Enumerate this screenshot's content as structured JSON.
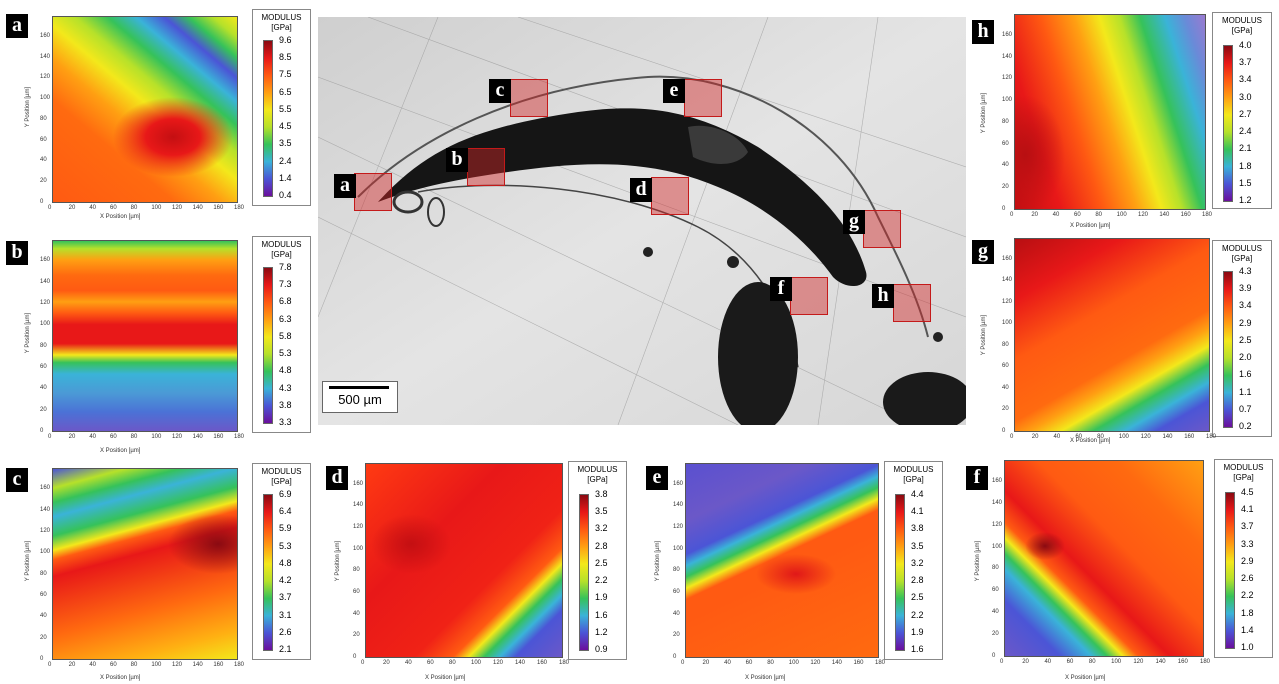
{
  "legend_title": [
    "MODULUS",
    "[GPa]"
  ],
  "x_axis_title": "X Position [µm]",
  "y_axis_title": "Y Position [µm]",
  "x_ticks": [
    "0",
    "20",
    "40",
    "60",
    "80",
    "100",
    "120",
    "140",
    "160",
    "180"
  ],
  "y_ticks": [
    "0",
    "20",
    "40",
    "60",
    "80",
    "100",
    "120",
    "140",
    "160"
  ],
  "scale_bar": "500 µm",
  "roi_labels": [
    "a",
    "b",
    "c",
    "d",
    "e",
    "f",
    "g",
    "h"
  ],
  "colormap": [
    "#6b0f9c",
    "#4b55d6",
    "#3ab3d8",
    "#36c25a",
    "#b6e12a",
    "#f3e81b",
    "#ff9f12",
    "#ff5a12",
    "#e81818",
    "#8a0a12"
  ],
  "panels": {
    "a": {
      "letter": "a",
      "ticks": [
        "9.6",
        "8.5",
        "7.5",
        "6.5",
        "5.5",
        "4.5",
        "3.5",
        "2.4",
        "1.4",
        "0.4"
      ]
    },
    "b": {
      "letter": "b",
      "ticks": [
        "7.8",
        "7.3",
        "6.8",
        "6.3",
        "5.8",
        "5.3",
        "4.8",
        "4.3",
        "3.8",
        "3.3"
      ]
    },
    "c": {
      "letter": "c",
      "ticks": [
        "6.9",
        "6.4",
        "5.9",
        "5.3",
        "4.8",
        "4.2",
        "3.7",
        "3.1",
        "2.6",
        "2.1"
      ]
    },
    "d": {
      "letter": "d",
      "ticks": [
        "3.8",
        "3.5",
        "3.2",
        "2.8",
        "2.5",
        "2.2",
        "1.9",
        "1.6",
        "1.2",
        "0.9"
      ]
    },
    "e": {
      "letter": "e",
      "ticks": [
        "4.4",
        "4.1",
        "3.8",
        "3.5",
        "3.2",
        "2.8",
        "2.5",
        "2.2",
        "1.9",
        "1.6"
      ]
    },
    "f": {
      "letter": "f",
      "ticks": [
        "4.5",
        "4.1",
        "3.7",
        "3.3",
        "2.9",
        "2.6",
        "2.2",
        "1.8",
        "1.4",
        "1.0"
      ]
    },
    "g": {
      "letter": "g",
      "ticks": [
        "4.3",
        "3.9",
        "3.4",
        "2.9",
        "2.5",
        "2.0",
        "1.6",
        "1.1",
        "0.7",
        "0.2"
      ]
    },
    "h": {
      "letter": "h",
      "ticks": [
        "4.0",
        "3.7",
        "3.4",
        "3.0",
        "2.7",
        "2.4",
        "2.1",
        "1.8",
        "1.5",
        "1.2"
      ]
    }
  }
}
